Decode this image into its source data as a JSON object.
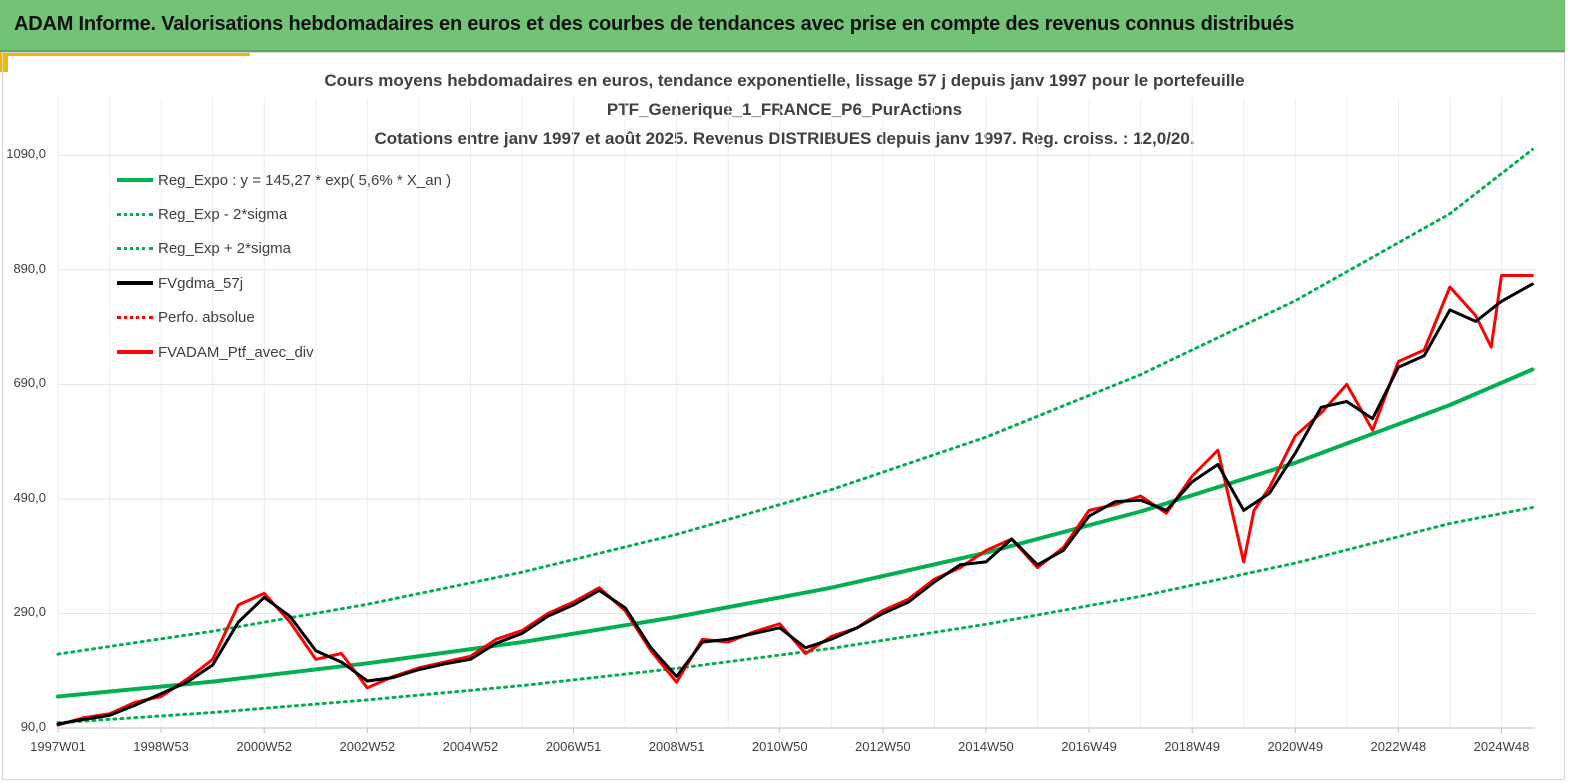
{
  "header": {
    "title": "ADAM Informe. Valorisations hebdomadaires en euros et des courbes de tendances avec prise en compte des revenus connus distribués"
  },
  "chart_data": {
    "type": "line",
    "title_lines": [
      "Cours moyens hebdomadaires  en euros, tendance exponentielle, lissage 57 j depuis janv 1997 pour le portefeuille",
      "PTF_Generique_1_FRANCE_P6_PurActions",
      "Cotations entre janv 1997 et août 2025. Revenus DISTRIBUES depuis janv 1997. Reg. croiss. : 12,0/20."
    ],
    "xlabel": "",
    "ylabel": "",
    "ylim": [
      90,
      1190
    ],
    "yticks": [
      "90,0",
      "290,0",
      "490,0",
      "690,0",
      "890,0",
      "1090,0"
    ],
    "xticks": [
      "1997W01",
      "1998W53",
      "2000W52",
      "2002W52",
      "2004W52",
      "2006W51",
      "2008W51",
      "2010W50",
      "2012W50",
      "2014W50",
      "2016W49",
      "2018W49",
      "2020W49",
      "2022W48",
      "2024W48"
    ],
    "grid": true,
    "legend_position": "top-left",
    "legend": [
      {
        "label": "Reg_Expo : y = 145,27 * exp( 5,6% *  X_an )",
        "color": "#00b050",
        "style": "solid"
      },
      {
        "label": "Reg_Exp - 2*sigma",
        "color": "#00b050",
        "style": "dotted"
      },
      {
        "label": "Reg_Exp + 2*sigma",
        "color": "#00b050",
        "style": "dotted"
      },
      {
        "label": "FVgdma_57j",
        "color": "#000000",
        "style": "solid"
      },
      {
        "label": "Perfo. absolue",
        "color": "#ff0000",
        "style": "dotted"
      },
      {
        "label": "FVADAM_Ptf_avec_div",
        "color": "#ff0000",
        "style": "solid"
      }
    ],
    "series": [
      {
        "name": "Reg_Expo : y = 145,27 * exp( 5,6% *  X_an )",
        "x": [
          1997.0,
          2000.0,
          2003.0,
          2006.0,
          2009.0,
          2012.0,
          2015.0,
          2018.0,
          2021.0,
          2024.0,
          2025.6
        ],
        "values": [
          145,
          171,
          203,
          240,
          284,
          335,
          396,
          468,
          553,
          654,
          716
        ]
      },
      {
        "name": "Reg_Exp - 2*sigma",
        "x": [
          1997.0,
          2000.0,
          2003.0,
          2006.0,
          2009.0,
          2012.0,
          2015.0,
          2018.0,
          2021.0,
          2024.0,
          2025.6
        ],
        "values": [
          99,
          117,
          139,
          164,
          194,
          229,
          271,
          320,
          378,
          447,
          475
        ]
      },
      {
        "name": "Reg_Exp + 2*sigma",
        "x": [
          1997.0,
          2000.0,
          2003.0,
          2006.0,
          2009.0,
          2012.0,
          2015.0,
          2018.0,
          2021.0,
          2024.0,
          2025.6
        ],
        "values": [
          219,
          259,
          306,
          362,
          428,
          506,
          598,
          707,
          836,
          988,
          1100
        ]
      },
      {
        "name": "FVgdma_57j",
        "x": [
          1997.0,
          1997.5,
          1998.0,
          1998.5,
          1999.0,
          1999.5,
          2000.0,
          2000.5,
          2001.0,
          2001.5,
          2002.0,
          2002.5,
          2003.0,
          2003.5,
          2004.0,
          2004.5,
          2005.0,
          2005.5,
          2006.0,
          2006.5,
          2007.0,
          2007.5,
          2008.0,
          2008.5,
          2009.0,
          2009.5,
          2010.0,
          2010.5,
          2011.0,
          2011.5,
          2012.0,
          2012.5,
          2013.0,
          2013.5,
          2014.0,
          2014.5,
          2015.0,
          2015.5,
          2016.0,
          2016.5,
          2017.0,
          2017.5,
          2018.0,
          2018.5,
          2019.0,
          2019.5,
          2020.0,
          2020.5,
          2021.0,
          2021.5,
          2022.0,
          2022.5,
          2023.0,
          2023.5,
          2024.0,
          2024.5,
          2025.0,
          2025.6
        ],
        "values": [
          97,
          105,
          112,
          130,
          150,
          170,
          200,
          275,
          318,
          285,
          225,
          205,
          172,
          178,
          192,
          202,
          210,
          238,
          255,
          285,
          305,
          330,
          300,
          230,
          180,
          240,
          245,
          255,
          265,
          230,
          245,
          265,
          290,
          310,
          345,
          375,
          380,
          420,
          375,
          400,
          460,
          485,
          488,
          470,
          520,
          550,
          470,
          500,
          570,
          650,
          660,
          630,
          720,
          740,
          820,
          800,
          835,
          865
        ]
      },
      {
        "name": "FVADAM_Ptf_avec_div",
        "x": [
          1997.0,
          1997.5,
          1998.0,
          1998.5,
          1999.0,
          1999.5,
          2000.0,
          2000.5,
          2001.0,
          2001.5,
          2002.0,
          2002.5,
          2003.0,
          2003.5,
          2004.0,
          2004.5,
          2005.0,
          2005.5,
          2006.0,
          2006.5,
          2007.0,
          2007.5,
          2008.0,
          2008.5,
          2009.0,
          2009.5,
          2010.0,
          2010.5,
          2011.0,
          2011.5,
          2012.0,
          2012.5,
          2013.0,
          2013.5,
          2014.0,
          2014.5,
          2015.0,
          2015.5,
          2016.0,
          2016.5,
          2017.0,
          2017.5,
          2018.0,
          2018.5,
          2019.0,
          2019.5,
          2020.0,
          2020.2,
          2020.5,
          2021.0,
          2021.5,
          2022.0,
          2022.5,
          2023.0,
          2023.5,
          2024.0,
          2024.5,
          2024.8,
          2025.0,
          2025.6
        ],
        "values": [
          95,
          108,
          115,
          135,
          145,
          175,
          210,
          305,
          325,
          275,
          210,
          220,
          160,
          180,
          195,
          205,
          215,
          245,
          260,
          290,
          310,
          335,
          295,
          225,
          170,
          245,
          240,
          258,
          272,
          220,
          250,
          265,
          295,
          315,
          350,
          370,
          400,
          420,
          370,
          405,
          470,
          480,
          495,
          465,
          530,
          575,
          380,
          470,
          510,
          600,
          640,
          690,
          610,
          730,
          750,
          860,
          810,
          755,
          880,
          880
        ]
      }
    ]
  }
}
